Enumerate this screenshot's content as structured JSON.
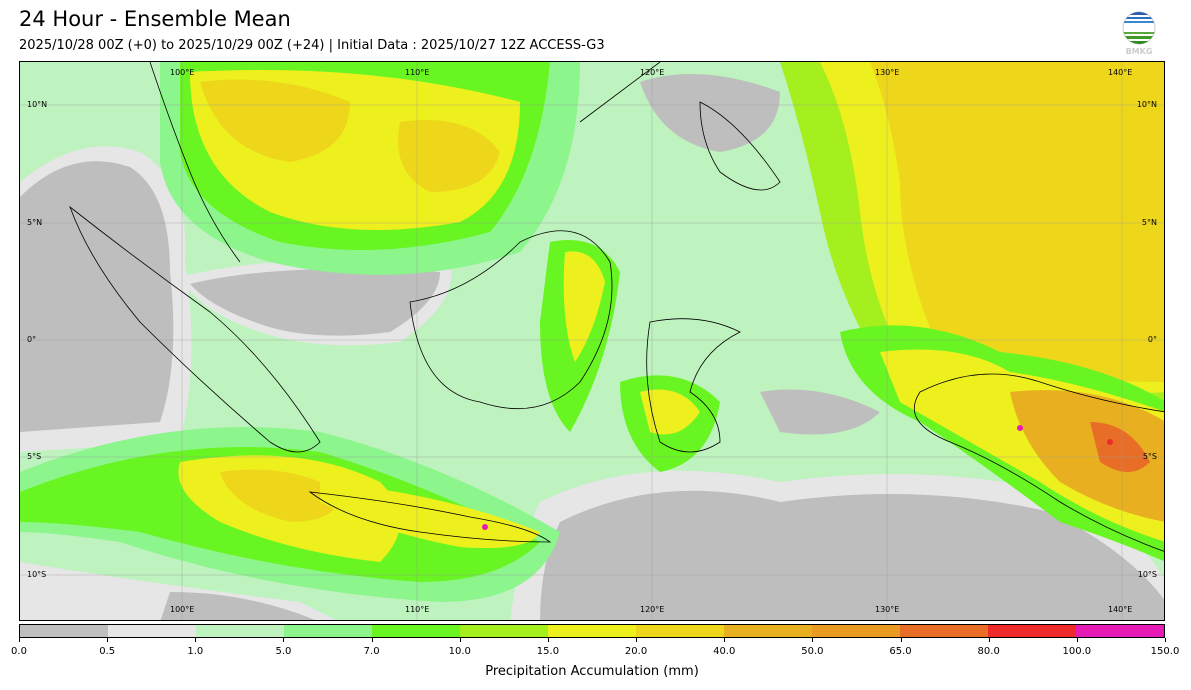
{
  "header": {
    "title": "24 Hour - Ensemble Mean",
    "subtitle": "2025/10/28 00Z (+0) to 2025/10/29 00Z (+24) | Initial Data : 2025/10/27 12Z ACCESS-G3"
  },
  "logo": {
    "text": "BMKG"
  },
  "map": {
    "lon_labels": [
      "100°E",
      "110°E",
      "120°E",
      "130°E",
      "140°E"
    ],
    "lat_labels": [
      "10°N",
      "5°N",
      "0°",
      "5°S",
      "10°S"
    ]
  },
  "colorbar": {
    "label": "Precipitation Accumulation (mm)",
    "ticks": [
      "0.0",
      "0.5",
      "1.0",
      "5.0",
      "7.0",
      "10.0",
      "15.0",
      "20.0",
      "40.0",
      "50.0",
      "65.0",
      "80.0",
      "100.0",
      "150.0"
    ],
    "colors": [
      "#bebebe",
      "#e6e6e6",
      "#bef2be",
      "#8cf58c",
      "#68f522",
      "#a5ef1e",
      "#eef01e",
      "#eed71a",
      "#e8b020",
      "#e89b20",
      "#e86e28",
      "#ee2a2a",
      "#e61ab4"
    ]
  }
}
